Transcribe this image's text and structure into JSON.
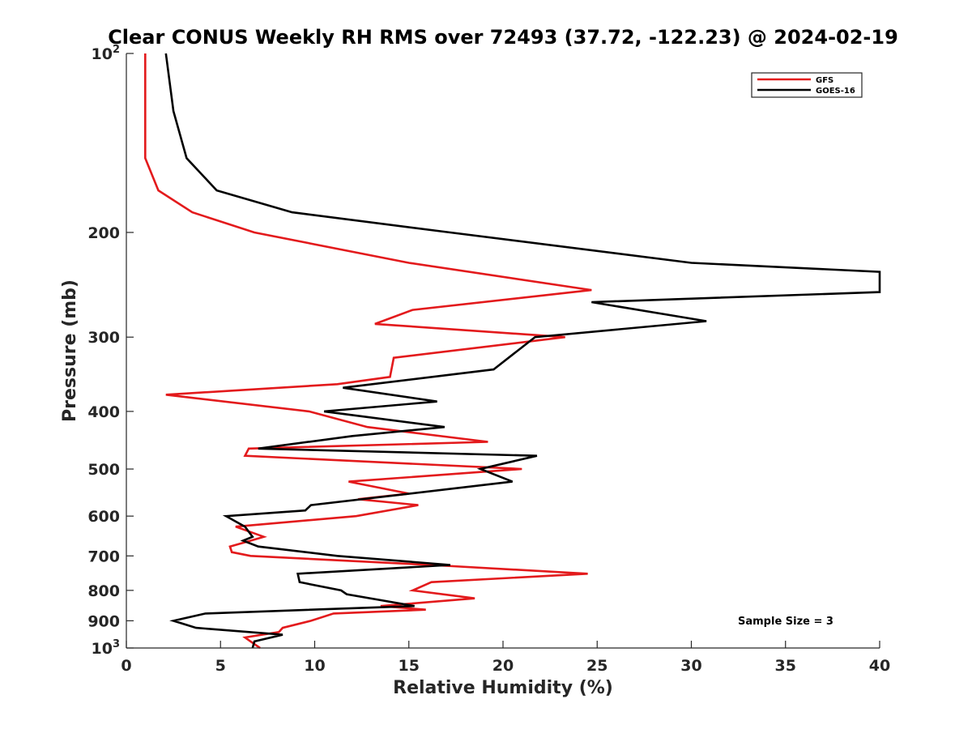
{
  "chart_data": {
    "type": "line",
    "title": "Clear CONUS Weekly RH RMS over 72493 (37.72, -122.23) @ 2024-02-19",
    "xlabel": "Relative Humidity (%)",
    "ylabel": "Pressure (mb)",
    "xlim": [
      0,
      40
    ],
    "ylim": [
      100,
      1000
    ],
    "y_scale": "log",
    "y_reversed": true,
    "x_ticks": [
      "0",
      "5",
      "10",
      "15",
      "20",
      "25",
      "30",
      "35",
      "40"
    ],
    "y_ticks": [
      {
        "value": 100,
        "base": "10",
        "exp": "2"
      },
      {
        "value": 200,
        "label": "200"
      },
      {
        "value": 300,
        "label": "300"
      },
      {
        "value": 400,
        "label": "400"
      },
      {
        "value": 500,
        "label": "500"
      },
      {
        "value": 600,
        "label": "600"
      },
      {
        "value": 700,
        "label": "700"
      },
      {
        "value": 800,
        "label": "800"
      },
      {
        "value": 900,
        "label": "900"
      },
      {
        "value": 1000,
        "base": "10",
        "exp": "3"
      }
    ],
    "grid": false,
    "legend_position": "top-right",
    "annotation": "Sample Size = 3",
    "series": [
      {
        "name": "GFS",
        "color": "#e31a1c",
        "points": [
          [
            1.0,
            100
          ],
          [
            1.0,
            125
          ],
          [
            1.0,
            150
          ],
          [
            1.7,
            170
          ],
          [
            3.5,
            185
          ],
          [
            6.8,
            200
          ],
          [
            15.0,
            225
          ],
          [
            24.7,
            250
          ],
          [
            15.2,
            270
          ],
          [
            13.2,
            285
          ],
          [
            23.3,
            300
          ],
          [
            14.2,
            325
          ],
          [
            14.0,
            350
          ],
          [
            11.2,
            360
          ],
          [
            2.1,
            375
          ],
          [
            9.7,
            400
          ],
          [
            12.8,
            425
          ],
          [
            19.2,
            450
          ],
          [
            6.5,
            462
          ],
          [
            6.3,
            475
          ],
          [
            21.0,
            500
          ],
          [
            11.8,
            525
          ],
          [
            15.0,
            550
          ],
          [
            12.3,
            562
          ],
          [
            15.5,
            575
          ],
          [
            12.2,
            600
          ],
          [
            5.8,
            625
          ],
          [
            7.3,
            650
          ],
          [
            6.6,
            660
          ],
          [
            5.5,
            675
          ],
          [
            5.6,
            690
          ],
          [
            6.6,
            700
          ],
          [
            16.2,
            725
          ],
          [
            24.5,
            750
          ],
          [
            16.2,
            775
          ],
          [
            15.2,
            800
          ],
          [
            18.5,
            825
          ],
          [
            13.5,
            850
          ],
          [
            15.9,
            862
          ],
          [
            11.0,
            875
          ],
          [
            9.8,
            900
          ],
          [
            8.3,
            925
          ],
          [
            8.1,
            940
          ],
          [
            6.3,
            960
          ],
          [
            6.6,
            975
          ],
          [
            7.1,
            1000
          ]
        ]
      },
      {
        "name": "GOES-16",
        "color": "#000000",
        "points": [
          [
            2.1,
            100
          ],
          [
            2.5,
            125
          ],
          [
            3.2,
            150
          ],
          [
            4.8,
            170
          ],
          [
            8.8,
            185
          ],
          [
            17.2,
            200
          ],
          [
            30.0,
            225
          ],
          [
            40.0,
            233
          ],
          [
            40.0,
            252
          ],
          [
            24.7,
            262
          ],
          [
            30.8,
            282
          ],
          [
            21.7,
            300
          ],
          [
            19.5,
            340
          ],
          [
            11.5,
            365
          ],
          [
            16.5,
            385
          ],
          [
            10.5,
            400
          ],
          [
            16.9,
            425
          ],
          [
            12.0,
            440
          ],
          [
            7.0,
            462
          ],
          [
            21.8,
            475
          ],
          [
            18.8,
            500
          ],
          [
            20.5,
            525
          ],
          [
            9.8,
            575
          ],
          [
            9.5,
            587
          ],
          [
            5.3,
            600
          ],
          [
            6.3,
            625
          ],
          [
            6.7,
            650
          ],
          [
            6.2,
            660
          ],
          [
            7.0,
            675
          ],
          [
            11.2,
            700
          ],
          [
            17.2,
            725
          ],
          [
            9.1,
            750
          ],
          [
            9.2,
            775
          ],
          [
            11.4,
            800
          ],
          [
            11.7,
            812
          ],
          [
            15.3,
            850
          ],
          [
            4.2,
            875
          ],
          [
            2.5,
            900
          ],
          [
            3.7,
            925
          ],
          [
            8.3,
            950
          ],
          [
            6.8,
            975
          ],
          [
            6.7,
            1000
          ]
        ]
      }
    ]
  }
}
